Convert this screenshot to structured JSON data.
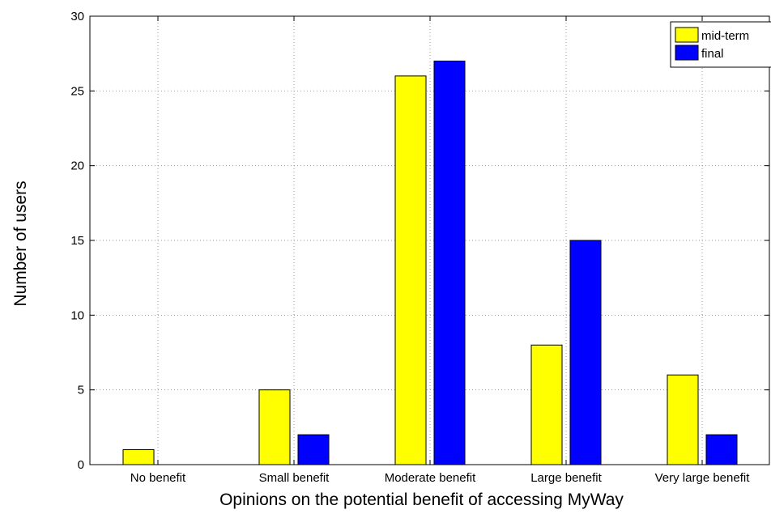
{
  "chart_data": {
    "type": "bar",
    "title": "",
    "xlabel": "Opinions on the potential benefit of accessing MyWay",
    "ylabel": "Number of users",
    "categories": [
      "No benefit",
      "Small benefit",
      "Moderate benefit",
      "Large benefit",
      "Very large benefit"
    ],
    "series": [
      {
        "name": "mid-term",
        "color": "#ffff00",
        "values": [
          1,
          5,
          26,
          8,
          6
        ]
      },
      {
        "name": "final",
        "color": "#0000ff",
        "values": [
          0,
          2,
          27,
          15,
          2
        ]
      }
    ],
    "ylim": [
      0,
      30
    ],
    "yticks": [
      0,
      5,
      10,
      15,
      20,
      25,
      30
    ],
    "grid": true,
    "legend_position": "top-right"
  }
}
